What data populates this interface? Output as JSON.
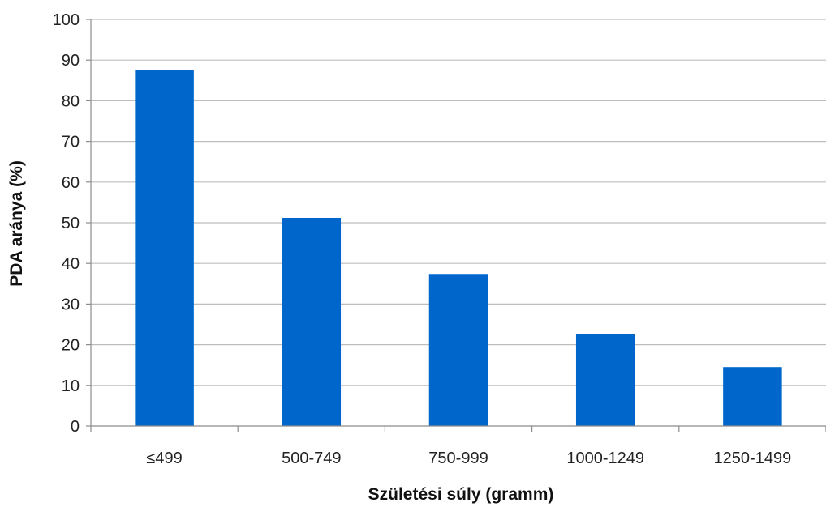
{
  "chart_data": {
    "type": "bar",
    "categories": [
      "≤499",
      "500-749",
      "750-999",
      "1000-1249",
      "1250-1499"
    ],
    "values": [
      87.5,
      51.2,
      37.4,
      22.6,
      14.5
    ],
    "title": "",
    "xlabel": "Születési súly (gramm)",
    "ylabel": "PDA aránya (%)",
    "ylim": [
      0,
      100
    ],
    "yticks": [
      0,
      10,
      20,
      30,
      40,
      50,
      60,
      70,
      80,
      90,
      100
    ],
    "grid": true,
    "bar_color": "#0066CC",
    "legend": "none"
  }
}
